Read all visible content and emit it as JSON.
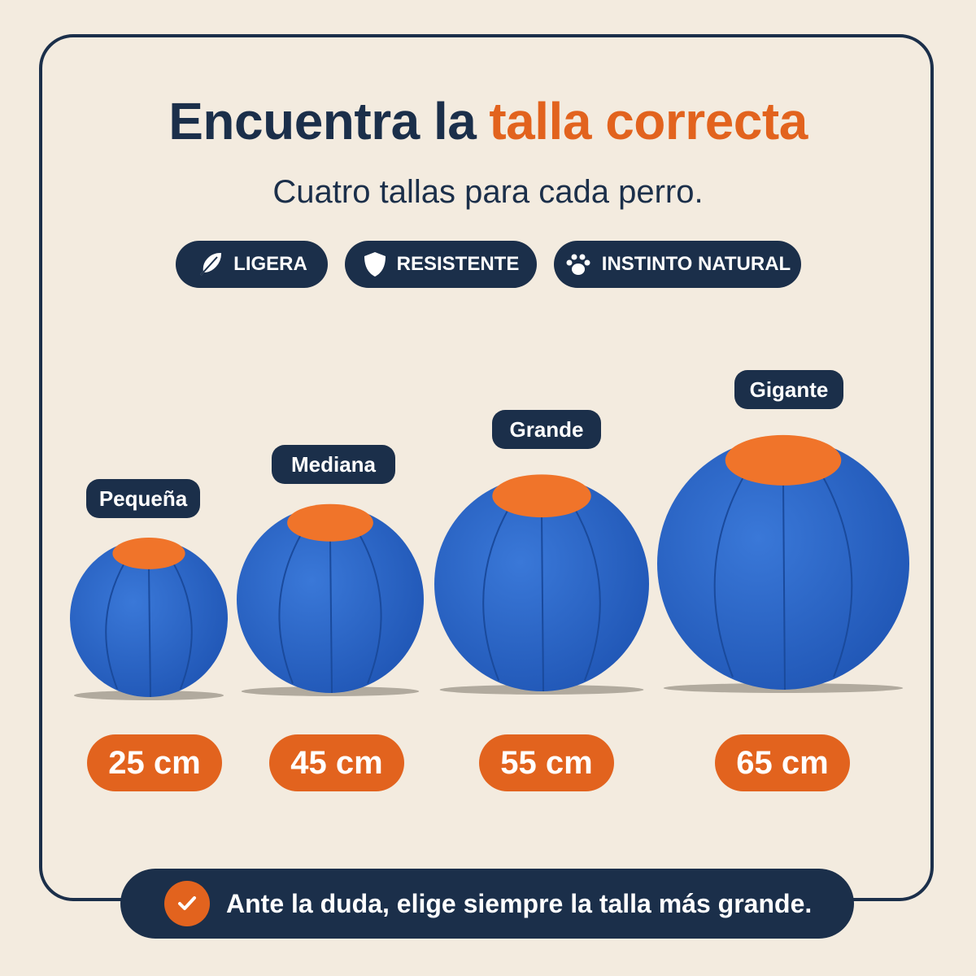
{
  "header": {
    "title": "Encuentra la",
    "title_highlight": "talla correcta",
    "subtitle": "Cuatro tallas para cada perro."
  },
  "features": [
    "LIGERA",
    "RESISTENTE",
    "INSTINTO NATURAL"
  ],
  "sizes": [
    {
      "name": "Pequeña",
      "size": "25 cm"
    },
    {
      "name": "Mediana",
      "size": "45 cm"
    },
    {
      "name": "Grande",
      "size": "55 cm"
    },
    {
      "name": "Gigante",
      "size": "65 cm"
    }
  ],
  "footer": {
    "note": "Ante la duda, elige siempre la talla más grande."
  }
}
